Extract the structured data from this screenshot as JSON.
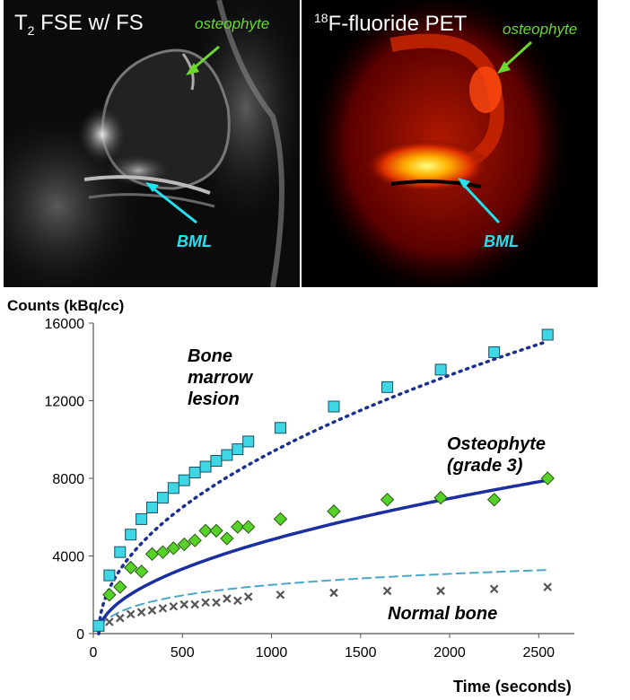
{
  "images": {
    "mri": {
      "title_prefix": "T",
      "title_sub": "2",
      "title_rest": " FSE w/ FS",
      "annotation_top": "osteophyte",
      "annotation_bottom": "BML"
    },
    "pet": {
      "title_sup": "18",
      "title_rest": "F-fluoride PET",
      "annotation_top": "osteophyte",
      "annotation_bottom": "BML"
    }
  },
  "colors": {
    "annotation_green": "#6bd82e",
    "annotation_cyan": "#22e2f0",
    "bml_series": "#3fd6e6",
    "bml_line": "#1b2f8f",
    "osteo_series": "#56d12a",
    "osteo_line": "#1b2fa0",
    "normal_series": "#888888",
    "normal_line": "#4aa6c8"
  },
  "chart_data": {
    "type": "scatter",
    "title": "",
    "ylabel": "Counts (kBq/cc)",
    "xlabel": "Time (seconds)",
    "xlim": [
      0,
      2700
    ],
    "ylim": [
      0,
      16000
    ],
    "xticks": [
      0,
      500,
      1000,
      1500,
      2000,
      2500
    ],
    "yticks": [
      0,
      4000,
      8000,
      12000,
      16000
    ],
    "grid": false,
    "series": [
      {
        "name": "Bone marrow lesion",
        "label_lines": [
          "Bone",
          "marrow",
          "lesion"
        ],
        "marker": "square",
        "line_style": "dotted",
        "x": [
          30,
          90,
          150,
          210,
          270,
          330,
          390,
          450,
          510,
          570,
          630,
          690,
          750,
          810,
          870,
          1050,
          1350,
          1650,
          1950,
          2250,
          2550
        ],
        "y": [
          400,
          3000,
          4200,
          5100,
          5900,
          6500,
          7000,
          7500,
          7900,
          8300,
          8600,
          8900,
          9200,
          9500,
          9900,
          10600,
          11700,
          12700,
          13600,
          14500,
          15400
        ]
      },
      {
        "name": "Osteophyte (grade 3)",
        "label_lines": [
          "Osteophyte",
          "(grade 3)"
        ],
        "marker": "diamond",
        "line_style": "solid",
        "x": [
          90,
          150,
          210,
          270,
          330,
          390,
          450,
          510,
          570,
          630,
          690,
          750,
          810,
          870,
          1050,
          1350,
          1650,
          1950,
          2250,
          2550
        ],
        "y": [
          2000,
          2400,
          3400,
          3200,
          4100,
          4200,
          4400,
          4600,
          4800,
          5300,
          5300,
          4900,
          5500,
          5500,
          5900,
          6300,
          6900,
          7000,
          6900,
          8000
        ]
      },
      {
        "name": "Normal bone",
        "label_lines": [
          "Normal bone"
        ],
        "marker": "x",
        "line_style": "dashed",
        "x": [
          90,
          150,
          210,
          270,
          330,
          390,
          450,
          510,
          570,
          630,
          690,
          750,
          810,
          870,
          1050,
          1350,
          1650,
          1950,
          2250,
          2550
        ],
        "y": [
          600,
          800,
          1000,
          1100,
          1200,
          1300,
          1400,
          1500,
          1500,
          1600,
          1600,
          1800,
          1700,
          1900,
          2000,
          2100,
          2200,
          2200,
          2300,
          2400
        ]
      }
    ]
  }
}
